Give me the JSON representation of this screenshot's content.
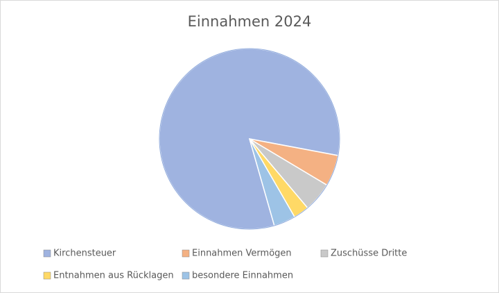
{
  "chart_data": {
    "type": "pie",
    "title": "Einnahmen 2024",
    "categories": [
      "Kirchensteuer",
      "Einnahmen Vermögen",
      "Zuschüsse Dritte",
      "Entnahmen aus Rücklagen",
      "besondere Einnahmen"
    ],
    "values": [
      82.4,
      5.6,
      5.3,
      2.8,
      3.9
    ],
    "colors": [
      "#9fb3e0",
      "#f4b183",
      "#c9c9c9",
      "#ffd966",
      "#9dc3e6"
    ],
    "legend": "bottom"
  }
}
